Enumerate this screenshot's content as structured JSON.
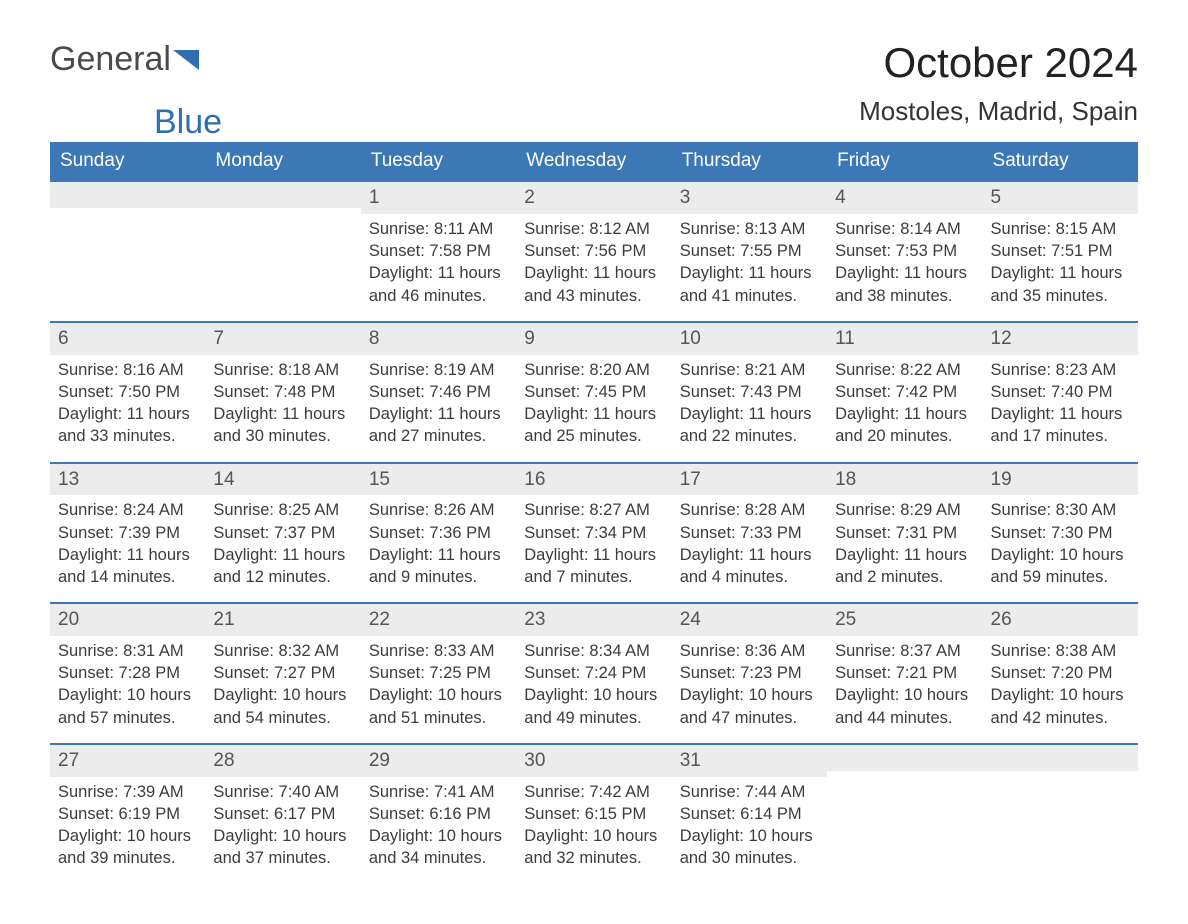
{
  "logo": {
    "text_a": "General",
    "text_b": "Blue",
    "triangle_color": "#2f6fb0"
  },
  "title": "October 2024",
  "subtitle": "Mostoles, Madrid, Spain",
  "colors": {
    "header_bg": "#3b78b5",
    "header_text": "#ffffff",
    "daynum_bg": "#ececec",
    "daynum_border": "#3b78b5",
    "body_text": "#3c3c3c",
    "page_bg": "#ffffff"
  },
  "fonts": {
    "title_size": 42,
    "subtitle_size": 26,
    "header_size": 19,
    "cell_size": 16.5
  },
  "day_headers": [
    "Sunday",
    "Monday",
    "Tuesday",
    "Wednesday",
    "Thursday",
    "Friday",
    "Saturday"
  ],
  "weeks": [
    [
      null,
      null,
      {
        "day": "1",
        "sunrise": "Sunrise: 8:11 AM",
        "sunset": "Sunset: 7:58 PM",
        "daylight1": "Daylight: 11 hours",
        "daylight2": "and 46 minutes."
      },
      {
        "day": "2",
        "sunrise": "Sunrise: 8:12 AM",
        "sunset": "Sunset: 7:56 PM",
        "daylight1": "Daylight: 11 hours",
        "daylight2": "and 43 minutes."
      },
      {
        "day": "3",
        "sunrise": "Sunrise: 8:13 AM",
        "sunset": "Sunset: 7:55 PM",
        "daylight1": "Daylight: 11 hours",
        "daylight2": "and 41 minutes."
      },
      {
        "day": "4",
        "sunrise": "Sunrise: 8:14 AM",
        "sunset": "Sunset: 7:53 PM",
        "daylight1": "Daylight: 11 hours",
        "daylight2": "and 38 minutes."
      },
      {
        "day": "5",
        "sunrise": "Sunrise: 8:15 AM",
        "sunset": "Sunset: 7:51 PM",
        "daylight1": "Daylight: 11 hours",
        "daylight2": "and 35 minutes."
      }
    ],
    [
      {
        "day": "6",
        "sunrise": "Sunrise: 8:16 AM",
        "sunset": "Sunset: 7:50 PM",
        "daylight1": "Daylight: 11 hours",
        "daylight2": "and 33 minutes."
      },
      {
        "day": "7",
        "sunrise": "Sunrise: 8:18 AM",
        "sunset": "Sunset: 7:48 PM",
        "daylight1": "Daylight: 11 hours",
        "daylight2": "and 30 minutes."
      },
      {
        "day": "8",
        "sunrise": "Sunrise: 8:19 AM",
        "sunset": "Sunset: 7:46 PM",
        "daylight1": "Daylight: 11 hours",
        "daylight2": "and 27 minutes."
      },
      {
        "day": "9",
        "sunrise": "Sunrise: 8:20 AM",
        "sunset": "Sunset: 7:45 PM",
        "daylight1": "Daylight: 11 hours",
        "daylight2": "and 25 minutes."
      },
      {
        "day": "10",
        "sunrise": "Sunrise: 8:21 AM",
        "sunset": "Sunset: 7:43 PM",
        "daylight1": "Daylight: 11 hours",
        "daylight2": "and 22 minutes."
      },
      {
        "day": "11",
        "sunrise": "Sunrise: 8:22 AM",
        "sunset": "Sunset: 7:42 PM",
        "daylight1": "Daylight: 11 hours",
        "daylight2": "and 20 minutes."
      },
      {
        "day": "12",
        "sunrise": "Sunrise: 8:23 AM",
        "sunset": "Sunset: 7:40 PM",
        "daylight1": "Daylight: 11 hours",
        "daylight2": "and 17 minutes."
      }
    ],
    [
      {
        "day": "13",
        "sunrise": "Sunrise: 8:24 AM",
        "sunset": "Sunset: 7:39 PM",
        "daylight1": "Daylight: 11 hours",
        "daylight2": "and 14 minutes."
      },
      {
        "day": "14",
        "sunrise": "Sunrise: 8:25 AM",
        "sunset": "Sunset: 7:37 PM",
        "daylight1": "Daylight: 11 hours",
        "daylight2": "and 12 minutes."
      },
      {
        "day": "15",
        "sunrise": "Sunrise: 8:26 AM",
        "sunset": "Sunset: 7:36 PM",
        "daylight1": "Daylight: 11 hours",
        "daylight2": "and 9 minutes."
      },
      {
        "day": "16",
        "sunrise": "Sunrise: 8:27 AM",
        "sunset": "Sunset: 7:34 PM",
        "daylight1": "Daylight: 11 hours",
        "daylight2": "and 7 minutes."
      },
      {
        "day": "17",
        "sunrise": "Sunrise: 8:28 AM",
        "sunset": "Sunset: 7:33 PM",
        "daylight1": "Daylight: 11 hours",
        "daylight2": "and 4 minutes."
      },
      {
        "day": "18",
        "sunrise": "Sunrise: 8:29 AM",
        "sunset": "Sunset: 7:31 PM",
        "daylight1": "Daylight: 11 hours",
        "daylight2": "and 2 minutes."
      },
      {
        "day": "19",
        "sunrise": "Sunrise: 8:30 AM",
        "sunset": "Sunset: 7:30 PM",
        "daylight1": "Daylight: 10 hours",
        "daylight2": "and 59 minutes."
      }
    ],
    [
      {
        "day": "20",
        "sunrise": "Sunrise: 8:31 AM",
        "sunset": "Sunset: 7:28 PM",
        "daylight1": "Daylight: 10 hours",
        "daylight2": "and 57 minutes."
      },
      {
        "day": "21",
        "sunrise": "Sunrise: 8:32 AM",
        "sunset": "Sunset: 7:27 PM",
        "daylight1": "Daylight: 10 hours",
        "daylight2": "and 54 minutes."
      },
      {
        "day": "22",
        "sunrise": "Sunrise: 8:33 AM",
        "sunset": "Sunset: 7:25 PM",
        "daylight1": "Daylight: 10 hours",
        "daylight2": "and 51 minutes."
      },
      {
        "day": "23",
        "sunrise": "Sunrise: 8:34 AM",
        "sunset": "Sunset: 7:24 PM",
        "daylight1": "Daylight: 10 hours",
        "daylight2": "and 49 minutes."
      },
      {
        "day": "24",
        "sunrise": "Sunrise: 8:36 AM",
        "sunset": "Sunset: 7:23 PM",
        "daylight1": "Daylight: 10 hours",
        "daylight2": "and 47 minutes."
      },
      {
        "day": "25",
        "sunrise": "Sunrise: 8:37 AM",
        "sunset": "Sunset: 7:21 PM",
        "daylight1": "Daylight: 10 hours",
        "daylight2": "and 44 minutes."
      },
      {
        "day": "26",
        "sunrise": "Sunrise: 8:38 AM",
        "sunset": "Sunset: 7:20 PM",
        "daylight1": "Daylight: 10 hours",
        "daylight2": "and 42 minutes."
      }
    ],
    [
      {
        "day": "27",
        "sunrise": "Sunrise: 7:39 AM",
        "sunset": "Sunset: 6:19 PM",
        "daylight1": "Daylight: 10 hours",
        "daylight2": "and 39 minutes."
      },
      {
        "day": "28",
        "sunrise": "Sunrise: 7:40 AM",
        "sunset": "Sunset: 6:17 PM",
        "daylight1": "Daylight: 10 hours",
        "daylight2": "and 37 minutes."
      },
      {
        "day": "29",
        "sunrise": "Sunrise: 7:41 AM",
        "sunset": "Sunset: 6:16 PM",
        "daylight1": "Daylight: 10 hours",
        "daylight2": "and 34 minutes."
      },
      {
        "day": "30",
        "sunrise": "Sunrise: 7:42 AM",
        "sunset": "Sunset: 6:15 PM",
        "daylight1": "Daylight: 10 hours",
        "daylight2": "and 32 minutes."
      },
      {
        "day": "31",
        "sunrise": "Sunrise: 7:44 AM",
        "sunset": "Sunset: 6:14 PM",
        "daylight1": "Daylight: 10 hours",
        "daylight2": "and 30 minutes."
      },
      null,
      null
    ]
  ]
}
